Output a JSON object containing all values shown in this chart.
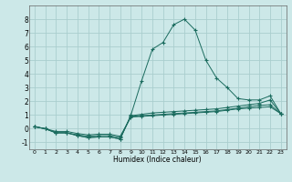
{
  "xlabel": "Humidex (Indice chaleur)",
  "xlim": [
    -0.5,
    23.5
  ],
  "ylim": [
    -1.5,
    9.0
  ],
  "xticks": [
    0,
    1,
    2,
    3,
    4,
    5,
    6,
    7,
    8,
    9,
    10,
    11,
    12,
    13,
    14,
    15,
    16,
    17,
    18,
    19,
    20,
    21,
    22,
    23
  ],
  "yticks": [
    -1,
    0,
    1,
    2,
    3,
    4,
    5,
    6,
    7,
    8
  ],
  "bg_color": "#cce8e8",
  "line_color": "#1a6b5e",
  "grid_color": "#aacece",
  "series_main_x": [
    0,
    1,
    2,
    3,
    4,
    5,
    6,
    7,
    8,
    9,
    10,
    11,
    12,
    13,
    14,
    15,
    16,
    17,
    18,
    19,
    20,
    21,
    22,
    23
  ],
  "series_main_y": [
    0.15,
    0.0,
    -0.3,
    -0.3,
    -0.5,
    -0.65,
    -0.6,
    -0.6,
    -0.75,
    1.0,
    3.5,
    5.8,
    6.3,
    7.6,
    8.0,
    7.2,
    5.0,
    3.7,
    3.0,
    2.2,
    2.1,
    2.1,
    2.4,
    1.1
  ],
  "series_b_x": [
    0,
    1,
    2,
    3,
    4,
    5,
    6,
    7,
    8,
    9,
    10,
    11,
    12,
    13,
    14,
    15,
    16,
    17,
    18,
    19,
    20,
    21,
    22,
    23
  ],
  "series_b_y": [
    0.15,
    0.0,
    -0.3,
    -0.3,
    -0.5,
    -0.65,
    -0.6,
    -0.6,
    -0.75,
    0.95,
    1.05,
    1.15,
    1.2,
    1.25,
    1.3,
    1.35,
    1.4,
    1.45,
    1.55,
    1.65,
    1.75,
    1.85,
    2.1,
    1.1
  ],
  "series_c_x": [
    0,
    1,
    2,
    3,
    4,
    5,
    6,
    7,
    8,
    9,
    10,
    11,
    12,
    13,
    14,
    15,
    16,
    17,
    18,
    19,
    20,
    21,
    22,
    23
  ],
  "series_c_y": [
    0.15,
    0.0,
    -0.3,
    -0.3,
    -0.45,
    -0.55,
    -0.5,
    -0.5,
    -0.65,
    0.9,
    0.95,
    1.0,
    1.05,
    1.1,
    1.15,
    1.2,
    1.25,
    1.3,
    1.4,
    1.5,
    1.6,
    1.7,
    1.75,
    1.1
  ],
  "series_d_x": [
    0,
    1,
    2,
    3,
    4,
    5,
    6,
    7,
    8,
    9,
    10,
    11,
    12,
    13,
    14,
    15,
    16,
    17,
    18,
    19,
    20,
    21,
    22,
    23
  ],
  "series_d_y": [
    0.15,
    0.0,
    -0.2,
    -0.2,
    -0.35,
    -0.45,
    -0.4,
    -0.4,
    -0.55,
    0.85,
    0.9,
    0.95,
    1.0,
    1.05,
    1.1,
    1.15,
    1.2,
    1.25,
    1.35,
    1.45,
    1.5,
    1.55,
    1.6,
    1.1
  ]
}
